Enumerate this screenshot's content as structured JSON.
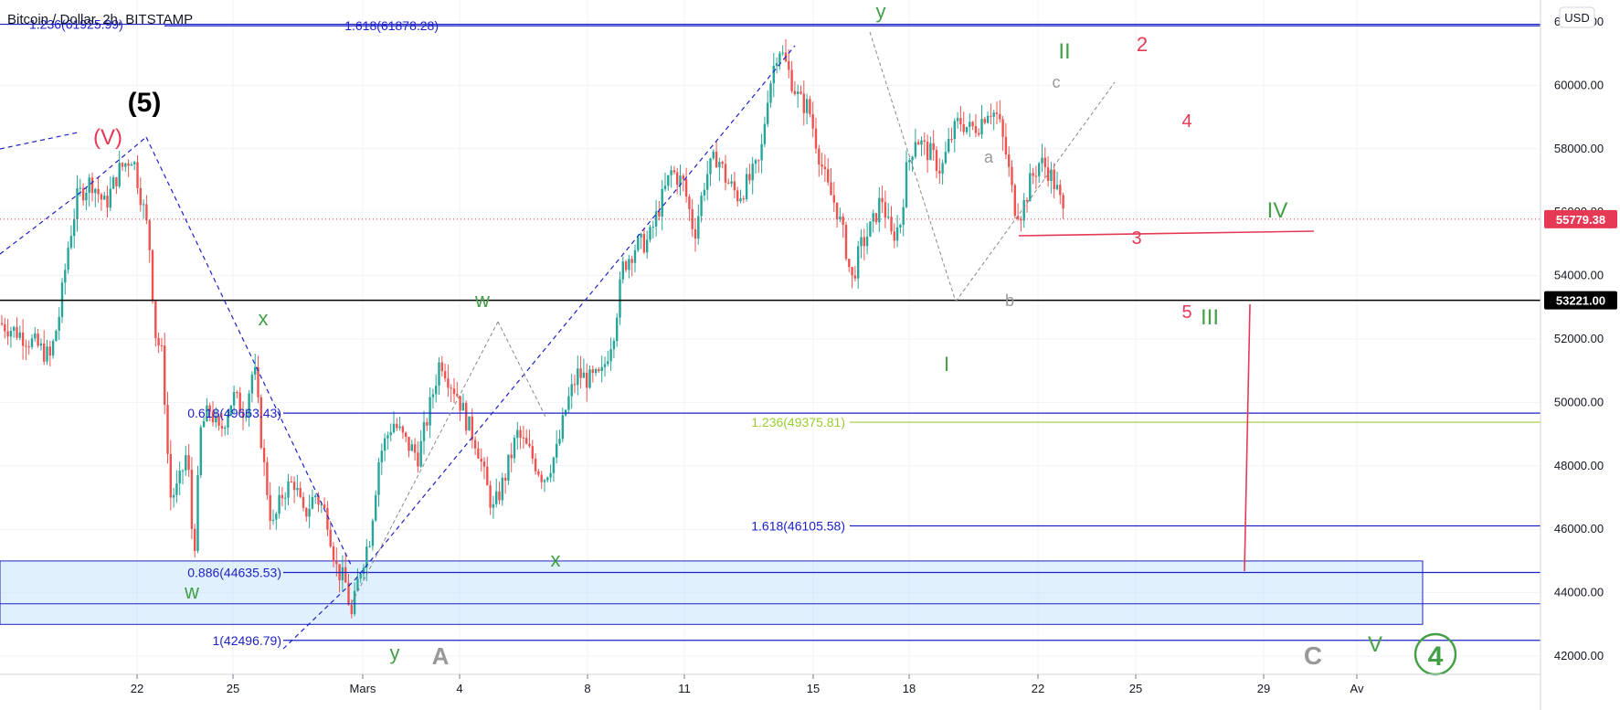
{
  "header": {
    "symbol_title": "Bitcoin / Dollar, 2h, BITSTAMP",
    "currency": "USD"
  },
  "colors": {
    "up": "#26a69a",
    "down": "#ef5350",
    "fib": "#1e22c6",
    "fib_green": "#9acd32",
    "wave_green": "#43a047",
    "wave_red": "#e53956",
    "wave_gray": "#999999",
    "price_tag": "#e53956",
    "zone": "#bbdefb"
  },
  "chart_data": {
    "type": "candlestick",
    "ylim": [
      41600,
      62500
    ],
    "x_tick_labels": [
      "22",
      "25",
      "Mars",
      "4",
      "8",
      "11",
      "15",
      "18",
      "22",
      "25",
      "29",
      "Av"
    ],
    "y_tick_labels": [
      "42000.00",
      "44000.00",
      "46000.00",
      "48000.00",
      "50000.00",
      "52000.00",
      "54000.00",
      "56000.00",
      "58000.00",
      "60000.00",
      "62000.00"
    ],
    "last_price": {
      "value": 55779.38,
      "label": "55779.38"
    },
    "horizontal_level": {
      "value": 53221.0,
      "label": "53221.00"
    },
    "support_zone": {
      "from": 43000,
      "to": 45000
    },
    "fib_levels": [
      {
        "label": "1.236(61925.99)",
        "value": 61926
      },
      {
        "label": "1.618(61878.28)",
        "value": 61878
      },
      {
        "label": "0.618(49663.43)",
        "value": 49663
      },
      {
        "label": "1.236(49375.81)",
        "value": 49376
      },
      {
        "label": "1.618(46105.58)",
        "value": 46106
      },
      {
        "label": "0.886(44635.53)",
        "value": 44636
      },
      {
        "label": "1(42496.79)",
        "value": 42497
      }
    ],
    "close_path": [
      [
        0,
        52500
      ],
      [
        20,
        52200
      ],
      [
        40,
        51800
      ],
      [
        55,
        51400
      ],
      [
        65,
        52800
      ],
      [
        75,
        55000
      ],
      [
        85,
        56500
      ],
      [
        100,
        57000
      ],
      [
        115,
        56200
      ],
      [
        130,
        57300
      ],
      [
        145,
        57800
      ],
      [
        155,
        56400
      ],
      [
        163,
        55200
      ],
      [
        170,
        52200
      ],
      [
        178,
        51400
      ],
      [
        186,
        47000
      ],
      [
        195,
        47300
      ],
      [
        205,
        48500
      ],
      [
        212,
        45000
      ],
      [
        220,
        49200
      ],
      [
        230,
        49800
      ],
      [
        240,
        49000
      ],
      [
        255,
        50200
      ],
      [
        268,
        49700
      ],
      [
        278,
        51200
      ],
      [
        288,
        48200
      ],
      [
        298,
        46000
      ],
      [
        310,
        47200
      ],
      [
        322,
        47500
      ],
      [
        332,
        46400
      ],
      [
        345,
        47100
      ],
      [
        358,
        46400
      ],
      [
        368,
        44800
      ],
      [
        378,
        44300
      ],
      [
        385,
        43200
      ],
      [
        393,
        44600
      ],
      [
        405,
        45800
      ],
      [
        415,
        48300
      ],
      [
        430,
        49400
      ],
      [
        445,
        48700
      ],
      [
        458,
        48300
      ],
      [
        470,
        49800
      ],
      [
        482,
        51400
      ],
      [
        492,
        50700
      ],
      [
        500,
        50300
      ],
      [
        512,
        49300
      ],
      [
        522,
        48700
      ],
      [
        532,
        47400
      ],
      [
        540,
        46600
      ],
      [
        552,
        47600
      ],
      [
        566,
        49000
      ],
      [
        580,
        48400
      ],
      [
        595,
        47600
      ],
      [
        610,
        48500
      ],
      [
        620,
        49900
      ],
      [
        632,
        50900
      ],
      [
        645,
        50700
      ],
      [
        658,
        50800
      ],
      [
        672,
        52300
      ],
      [
        682,
        54300
      ],
      [
        695,
        54900
      ],
      [
        710,
        55100
      ],
      [
        722,
        56200
      ],
      [
        735,
        57300
      ],
      [
        748,
        56900
      ],
      [
        760,
        55300
      ],
      [
        772,
        57100
      ],
      [
        785,
        57800
      ],
      [
        795,
        57000
      ],
      [
        808,
        56500
      ],
      [
        820,
        57000
      ],
      [
        832,
        57600
      ],
      [
        840,
        59700
      ],
      [
        852,
        61300
      ],
      [
        862,
        60500
      ],
      [
        875,
        59500
      ],
      [
        885,
        59300
      ],
      [
        895,
        58000
      ],
      [
        905,
        56800
      ],
      [
        915,
        56200
      ],
      [
        925,
        55000
      ],
      [
        932,
        53800
      ],
      [
        942,
        54900
      ],
      [
        955,
        55600
      ],
      [
        965,
        56500
      ],
      [
        975,
        55200
      ],
      [
        985,
        55600
      ],
      [
        992,
        57300
      ],
      [
        1002,
        58400
      ],
      [
        1012,
        58000
      ],
      [
        1020,
        57800
      ],
      [
        1030,
        57300
      ],
      [
        1040,
        58300
      ],
      [
        1050,
        58900
      ],
      [
        1062,
        58600
      ],
      [
        1072,
        58800
      ],
      [
        1082,
        59300
      ],
      [
        1092,
        59000
      ],
      [
        1102,
        57700
      ],
      [
        1110,
        56200
      ],
      [
        1118,
        56000
      ],
      [
        1128,
        57000
      ],
      [
        1138,
        57600
      ],
      [
        1148,
        57300
      ],
      [
        1158,
        56600
      ],
      [
        1165,
        55779
      ]
    ],
    "wave_labels": [
      {
        "text": "(5)",
        "color": "black"
      },
      {
        "text": "(V)",
        "color": "red"
      },
      {
        "text": "x",
        "color": "green"
      },
      {
        "text": "w",
        "color": "green"
      },
      {
        "text": "w",
        "color": "green"
      },
      {
        "text": "x",
        "color": "green"
      },
      {
        "text": "y",
        "color": "green"
      },
      {
        "text": "A",
        "color": "gray"
      },
      {
        "text": "y",
        "color": "green"
      },
      {
        "text": "I",
        "color": "green"
      },
      {
        "text": "II",
        "color": "green"
      },
      {
        "text": "III",
        "color": "green"
      },
      {
        "text": "IV",
        "color": "green"
      },
      {
        "text": "V",
        "color": "green"
      },
      {
        "text": "a",
        "color": "gray"
      },
      {
        "text": "b",
        "color": "gray"
      },
      {
        "text": "c",
        "color": "gray"
      },
      {
        "text": "C",
        "color": "gray"
      },
      {
        "text": "2",
        "color": "red"
      },
      {
        "text": "3",
        "color": "red"
      },
      {
        "text": "4",
        "color": "red"
      },
      {
        "text": "5",
        "color": "red"
      },
      {
        "text": "4",
        "color": "green"
      }
    ]
  }
}
